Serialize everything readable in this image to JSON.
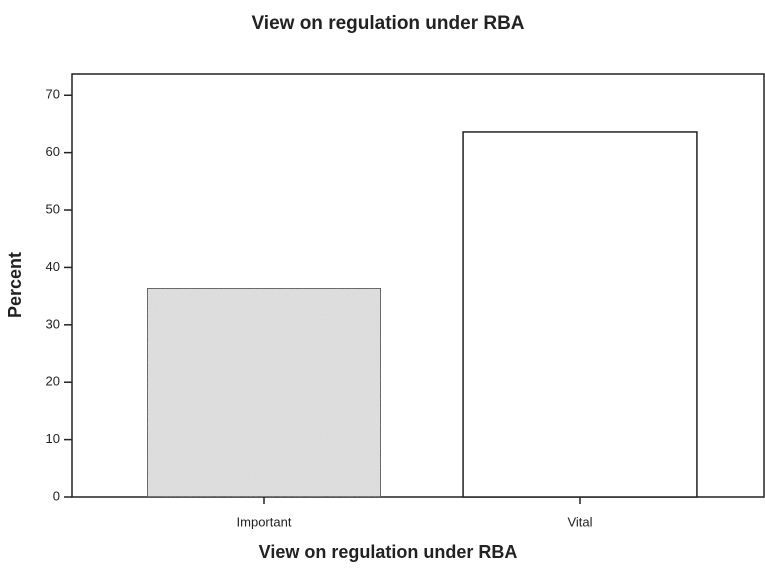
{
  "chart_data": {
    "type": "bar",
    "title": "View on regulation under RBA",
    "x_label": "View on regulation under RBA",
    "y_label": "Percent",
    "categories": [
      "Important",
      "Vital"
    ],
    "values": [
      36.4,
      63.6
    ],
    "colors": [
      "#e2e2e2",
      "#ffffff"
    ],
    "ylim": [
      0,
      73.7
    ],
    "yticks": [
      0,
      10,
      20,
      30,
      40,
      50,
      60,
      70
    ],
    "grid": false
  }
}
